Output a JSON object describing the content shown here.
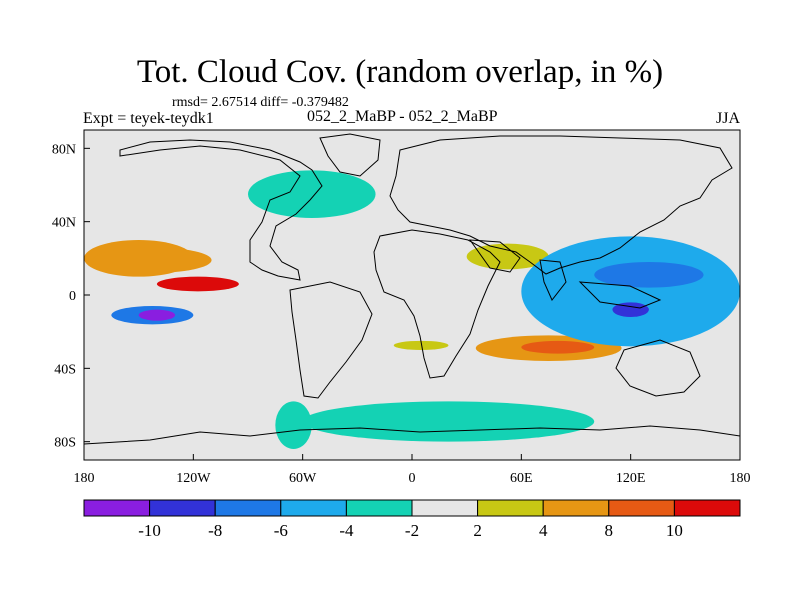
{
  "figure": {
    "title": "Tot. Cloud Cov. (random overlap, in %)",
    "stats": "rmsd= 2.67514 diff= -0.379482",
    "expt": "Expt = teyek-teydk1",
    "case": "052_2_MaBP - 052_2_MaBP",
    "season": "JJA"
  },
  "chart_data": {
    "type": "heatmap",
    "title": "Tot. Cloud Cov. (random overlap, in %)",
    "xlim": [
      -180,
      180
    ],
    "ylim": [
      -90,
      90
    ],
    "x_ticks": [
      {
        "value": -180,
        "label": "180"
      },
      {
        "value": -120,
        "label": "120W"
      },
      {
        "value": -60,
        "label": "60W"
      },
      {
        "value": 0,
        "label": "0"
      },
      {
        "value": 60,
        "label": "60E"
      },
      {
        "value": 120,
        "label": "120E"
      },
      {
        "value": 180,
        "label": "180"
      }
    ],
    "y_ticks": [
      {
        "value": 80,
        "label": "80N"
      },
      {
        "value": 40,
        "label": "40N"
      },
      {
        "value": 0,
        "label": "0"
      },
      {
        "value": -40,
        "label": "40S"
      },
      {
        "value": -80,
        "label": "80S"
      }
    ],
    "contour_levels": [
      -10,
      -8,
      -6,
      -4,
      -2,
      2,
      4,
      8,
      10
    ],
    "colorbar_labels": [
      "-10",
      "-8",
      "-6",
      "-4",
      "-2",
      "2",
      "4",
      "8",
      "10"
    ],
    "colorbar_colors": [
      "#8a1ee0",
      "#3232d8",
      "#1e78e6",
      "#1eaaec",
      "#14d2b4",
      "#e6e6e6",
      "#c8c814",
      "#e69614",
      "#e65a14",
      "#dc0a0a"
    ],
    "regions": [
      {
        "lon": [
          -180,
          -120
        ],
        "lat": [
          10,
          30
        ],
        "value": 5
      },
      {
        "lon": [
          -175,
          -110
        ],
        "lat": [
          12,
          26
        ],
        "value": 6
      },
      {
        "lon": [
          -140,
          -95
        ],
        "lat": [
          2,
          10
        ],
        "value": 11
      },
      {
        "lon": [
          -165,
          -120
        ],
        "lat": [
          -16,
          -6
        ],
        "value": -8
      },
      {
        "lon": [
          -150,
          -130
        ],
        "lat": [
          -14,
          -8
        ],
        "value": -11
      },
      {
        "lon": [
          30,
          75
        ],
        "lat": [
          14,
          28
        ],
        "value": 3
      },
      {
        "lon": [
          -10,
          20
        ],
        "lat": [
          -30,
          -25
        ],
        "value": 3
      },
      {
        "lon": [
          35,
          115
        ],
        "lat": [
          -36,
          -22
        ],
        "value": 5
      },
      {
        "lon": [
          60,
          100
        ],
        "lat": [
          -32,
          -25
        ],
        "value": 9
      },
      {
        "lon": [
          60,
          180
        ],
        "lat": [
          -28,
          32
        ],
        "value": -5
      },
      {
        "lon": [
          100,
          160
        ],
        "lat": [
          4,
          18
        ],
        "value": -8
      },
      {
        "lon": [
          110,
          130
        ],
        "lat": [
          -12,
          -4
        ],
        "value": -10
      },
      {
        "lon": [
          -90,
          -20
        ],
        "lat": [
          42,
          68
        ],
        "value": -4
      },
      {
        "lon": [
          -75,
          -55
        ],
        "lat": [
          -84,
          -58
        ],
        "value": -3
      },
      {
        "lon": [
          -60,
          100
        ],
        "lat": [
          -80,
          -58
        ],
        "value": -3
      }
    ]
  }
}
